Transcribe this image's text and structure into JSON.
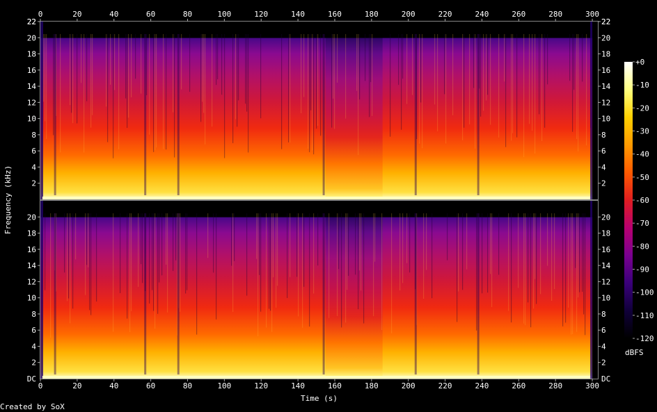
{
  "chart_data": {
    "type": "heatmap",
    "title": "",
    "xlabel": "Time (s)",
    "ylabel": "Frequency (kHz)",
    "x_ticks": [
      "0",
      "20",
      "40",
      "60",
      "80",
      "100",
      "120",
      "140",
      "160",
      "180",
      "200",
      "220",
      "240",
      "260",
      "280",
      "300"
    ],
    "xlim": [
      0,
      303
    ],
    "channels": [
      {
        "y_ticks": [
          "2",
          "4",
          "6",
          "8",
          "10",
          "12",
          "14",
          "16",
          "18",
          "20",
          "22"
        ],
        "bottom_label": ""
      },
      {
        "y_ticks": [
          "2",
          "4",
          "6",
          "8",
          "10",
          "12",
          "14",
          "16",
          "18",
          "20"
        ],
        "bottom_label": "DC"
      }
    ],
    "y_top_label": "22",
    "ylim_khz": [
      0,
      22
    ],
    "colorbar": {
      "label": "dBFS",
      "ticks": [
        "+0",
        "-10",
        "-20",
        "-30",
        "-40",
        "-50",
        "-60",
        "-70",
        "-80",
        "-90",
        "-100",
        "-110",
        "-120"
      ],
      "range_db": [
        -120,
        0
      ],
      "colors": [
        "#000000",
        "#10003a",
        "#3a007a",
        "#7a0090",
        "#b80070",
        "#e01d20",
        "#ff5a00",
        "#ff9a00",
        "#ffd000",
        "#ffff80",
        "#ffffff"
      ]
    },
    "content_end_s": 300,
    "loud_sections": [
      {
        "start": 0,
        "end": 155,
        "level": "high"
      },
      {
        "start": 155,
        "end": 186,
        "level": "medium"
      },
      {
        "start": 186,
        "end": 300,
        "level": "high"
      }
    ],
    "dips_s": [
      8,
      57,
      75,
      154,
      204,
      238
    ]
  },
  "footer": {
    "credit": "Created by SoX"
  }
}
